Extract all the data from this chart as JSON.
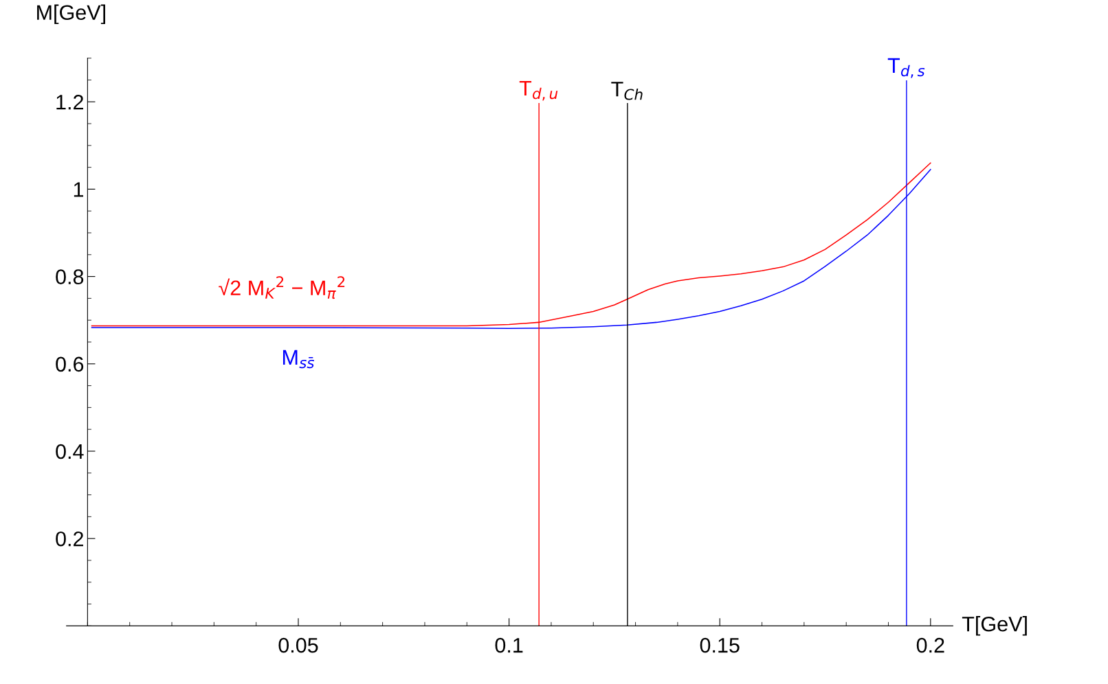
{
  "chart_data": {
    "type": "line",
    "xlabel": "T[GeV]",
    "ylabel": "M[GeV]",
    "xlim": [
      -0.005,
      0.2053
    ],
    "ylim": [
      0,
      1.3
    ],
    "xticks": [
      0.05,
      0.1,
      0.15,
      0.2
    ],
    "yticks": [
      0.2,
      0.4,
      0.6,
      0.8,
      1,
      1.2
    ],
    "grid": false,
    "legend": false,
    "marker": "none",
    "line_style": "solid",
    "series": [
      {
        "name": "√2 M$_{K}$$^{2}$ − M$_{π}$$^{2}$",
        "color": "#ff0000",
        "x": [
          0.001,
          0.05,
          0.09,
          0.1,
          0.107,
          0.115,
          0.12,
          0.125,
          0.128,
          0.133,
          0.137,
          0.14,
          0.145,
          0.15,
          0.155,
          0.16,
          0.165,
          0.17,
          0.175,
          0.18,
          0.185,
          0.19,
          0.195,
          0.2
        ],
        "values": [
          0.687,
          0.687,
          0.687,
          0.69,
          0.695,
          0.71,
          0.72,
          0.735,
          0.748,
          0.77,
          0.783,
          0.79,
          0.797,
          0.801,
          0.806,
          0.813,
          0.822,
          0.838,
          0.862,
          0.895,
          0.93,
          0.97,
          1.015,
          1.06
        ]
      },
      {
        "name": "M$_{ss̄}$",
        "color": "#0000ff",
        "x": [
          0.001,
          0.05,
          0.09,
          0.1,
          0.11,
          0.12,
          0.128,
          0.135,
          0.14,
          0.145,
          0.15,
          0.155,
          0.16,
          0.165,
          0.17,
          0.175,
          0.18,
          0.185,
          0.19,
          0.195,
          0.2
        ],
        "values": [
          0.683,
          0.683,
          0.682,
          0.681,
          0.682,
          0.685,
          0.689,
          0.695,
          0.702,
          0.71,
          0.72,
          0.733,
          0.748,
          0.767,
          0.79,
          0.823,
          0.858,
          0.895,
          0.94,
          0.99,
          1.045
        ]
      }
    ],
    "ref_lines": [
      {
        "axis": "x",
        "value": 0.1071,
        "label": "T$_{d,u}$",
        "color": "#ff0000"
      },
      {
        "axis": "x",
        "value": 0.1281,
        "label": "T$_{Ch}$",
        "color": "#000000"
      },
      {
        "axis": "x",
        "value": 0.1943,
        "label": "T$_{d,s}$",
        "color": "#0000ff"
      }
    ]
  }
}
